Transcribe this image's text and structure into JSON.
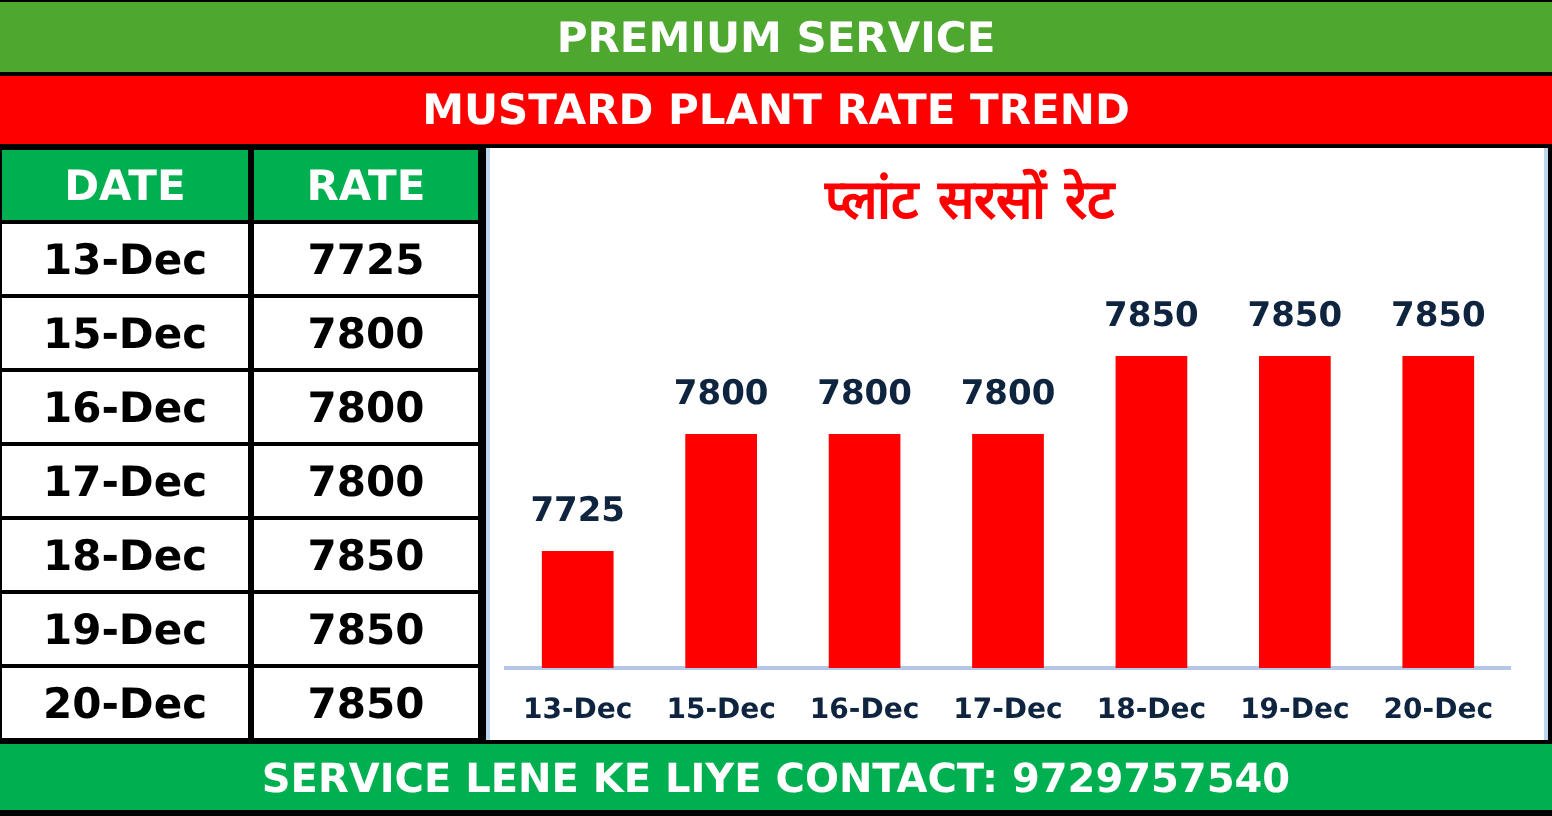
{
  "chart_data": [
    {
      "type": "other",
      "categories": [
        "13-Dec",
        "15-Dec",
        "16-Dec",
        "17-Dec",
        "18-Dec",
        "19-Dec",
        "20-Dec"
      ],
      "values": [
        7725,
        7800,
        7800,
        7800,
        7850,
        7850,
        7850
      ],
      "data_labels": true,
      "annotations": [
        "DATE",
        "RATE"
      ]
    },
    {
      "type": "bar",
      "title": "MUSTARD PLANT RATE TREND",
      "subtitle": "प्लांट सरसों रेट",
      "categories": [
        "13-Dec",
        "15-Dec",
        "16-Dec",
        "17-Dec",
        "18-Dec",
        "19-Dec",
        "20-Dec"
      ],
      "values": [
        7725,
        7800,
        7800,
        7800,
        7850,
        7850,
        7850
      ],
      "color": "#ff0000",
      "tick_labels": "x",
      "data_labels": true,
      "annotations": [
        "PREMIUM SERVICE",
        "SERVICE LENE KE LIYE CONTACT: 9729757540"
      ]
    }
  ]
}
